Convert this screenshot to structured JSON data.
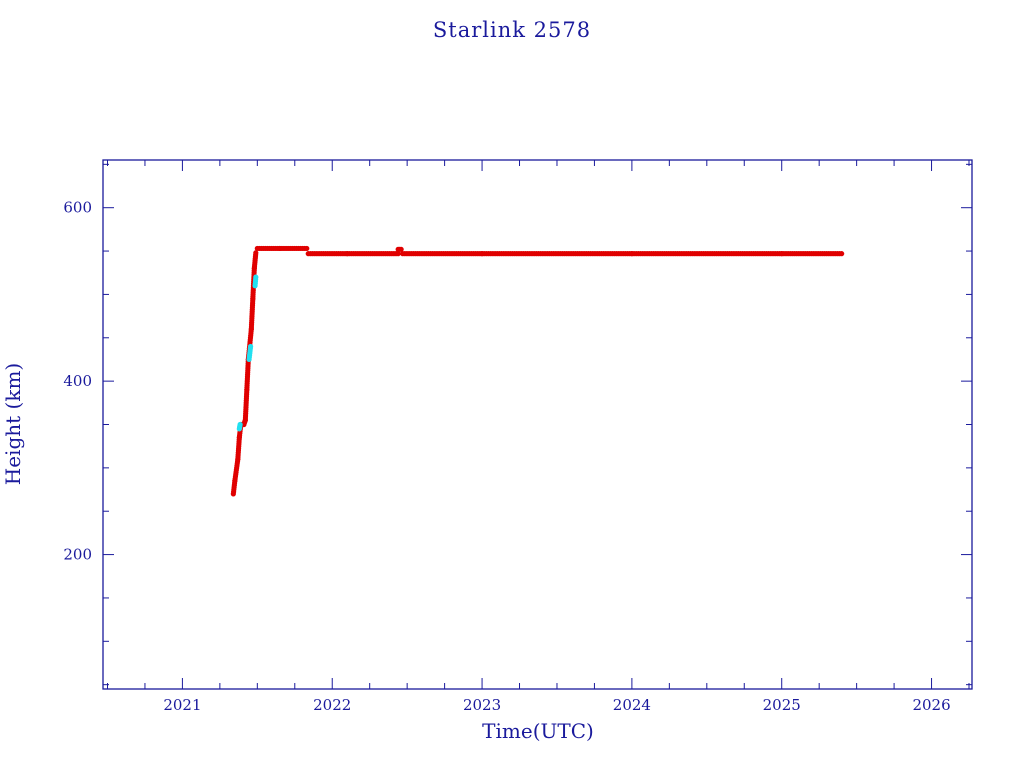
{
  "chart_data": {
    "type": "scatter",
    "title": "Starlink 2578",
    "xlabel": "Time(UTC)",
    "ylabel": "Height (km)",
    "xlim": [
      2020.47,
      2026.27
    ],
    "ylim": [
      45,
      655
    ],
    "x_ticks": [
      "2021",
      "2022",
      "2023",
      "2024",
      "2025",
      "2026"
    ],
    "y_ticks": [
      "200",
      "400",
      "600"
    ],
    "grid": false,
    "colors": {
      "axis": "#1a1a9c",
      "primary": "#e00000",
      "secondary": "#22e0f0"
    },
    "series": [
      {
        "color": "#e00000",
        "segments": [
          {
            "x": [
              2021.34,
              2021.35,
              2021.37,
              2021.38,
              2021.39,
              2021.41,
              2021.42,
              2021.43,
              2021.44,
              2021.46,
              2021.47,
              2021.48,
              2021.49
            ],
            "y": [
              270,
              285,
              310,
              335,
              350,
              350,
              355,
              390,
              425,
              460,
              495,
              530,
              548
            ]
          },
          {
            "x": [
              2021.5,
              2021.65,
              2021.83
            ],
            "y": [
              553,
              553,
              553
            ]
          },
          {
            "x": [
              2021.84,
              2022.1,
              2022.44
            ],
            "y": [
              547,
              547,
              547
            ]
          },
          {
            "x": [
              2022.44,
              2022.46
            ],
            "y": [
              552,
              552
            ]
          },
          {
            "x": [
              2022.47,
              2023.0,
              2024.0,
              2025.0,
              2025.4
            ],
            "y": [
              547,
              547,
              547,
              547,
              547
            ]
          }
        ]
      },
      {
        "color": "#22e0f0",
        "segments": [
          {
            "x": [
              2021.38,
              2021.385
            ],
            "y": [
              345,
              350
            ]
          },
          {
            "x": [
              2021.445,
              2021.455
            ],
            "y": [
              425,
              440
            ]
          },
          {
            "x": [
              2021.485,
              2021.49
            ],
            "y": [
              510,
              520
            ]
          }
        ]
      }
    ]
  }
}
